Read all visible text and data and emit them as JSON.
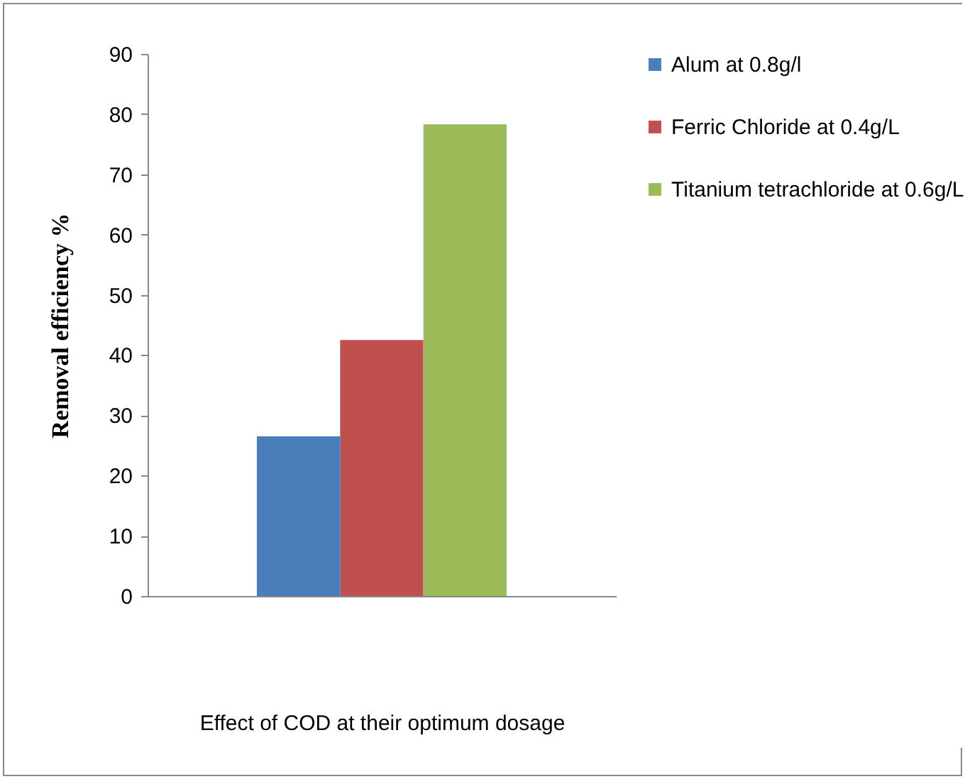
{
  "chart_data": {
    "type": "bar",
    "xlabel": "Effect of COD at their optimum dosage",
    "ylabel": "Removal efficiency %",
    "categories": [
      null
    ],
    "series": [
      {
        "name": "Alum at 0.8g/l",
        "color": "#4a7ebb",
        "values": [
          26.5
        ]
      },
      {
        "name": "Ferric Chloride at 0.4g/L",
        "color": "#c0504d",
        "values": [
          42.5
        ]
      },
      {
        "name": "Titanium tetrachloride at 0.6g/L",
        "color": "#9bbb59",
        "values": [
          78.3
        ]
      }
    ],
    "ylim": [
      0,
      90
    ],
    "yticks": [
      0,
      10,
      20,
      30,
      40,
      50,
      60,
      70,
      80,
      90
    ],
    "legend": "right"
  }
}
